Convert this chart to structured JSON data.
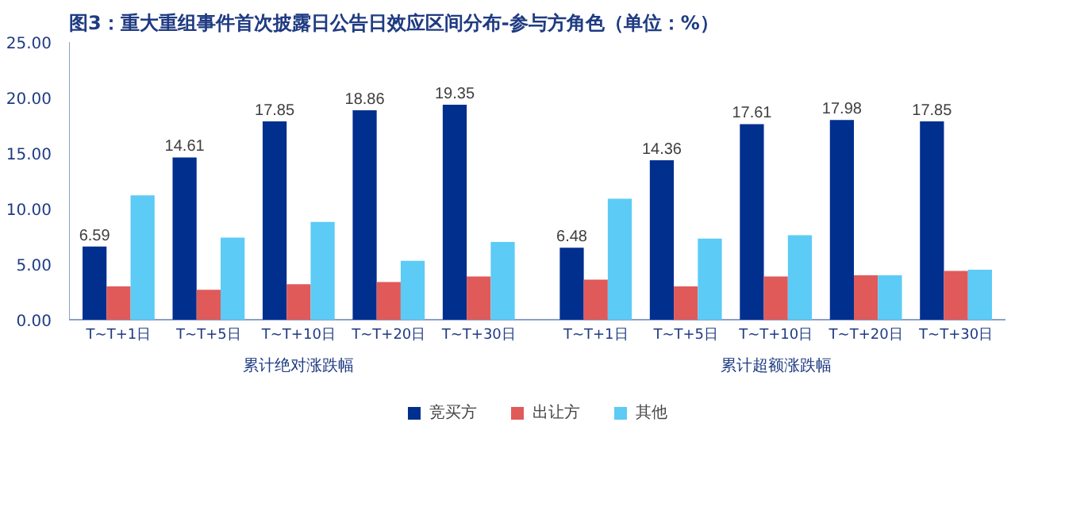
{
  "chart_data": {
    "type": "bar",
    "title": "图3：重大重组事件首次披露日公告日效应区间分布-参与方角色（单位：%）",
    "categories": [
      "T~T+1日",
      "T~T+5日",
      "T~T+10日",
      "T~T+20日",
      "T~T+30日",
      "T~T+1日",
      "T~T+5日",
      "T~T+10日",
      "T~T+20日",
      "T~T+30日"
    ],
    "annotations": [
      "累计绝对涨跌幅",
      "累计超额涨跌幅"
    ],
    "series": [
      {
        "name": "竞买方",
        "color": "#002f8e",
        "values": [
          6.59,
          14.61,
          17.85,
          18.86,
          19.35,
          6.48,
          14.36,
          17.61,
          17.98,
          17.85
        ],
        "value_labels": [
          "6.59",
          "14.61",
          "17.85",
          "18.86",
          "19.35",
          "6.48",
          "14.36",
          "17.61",
          "17.98",
          "17.85"
        ]
      },
      {
        "name": "出让方",
        "color": "#e05a5a",
        "values": [
          3.0,
          2.7,
          3.2,
          3.4,
          3.9,
          3.6,
          3.0,
          3.9,
          4.0,
          4.4
        ]
      },
      {
        "name": "其他",
        "color": "#5ccbf5",
        "values": [
          11.2,
          7.4,
          8.8,
          5.3,
          7.0,
          10.9,
          7.3,
          7.6,
          4.0,
          4.5
        ]
      }
    ],
    "ylim": [
      0,
      25
    ],
    "yticks": [
      {
        "value": 0,
        "label": "0.00"
      },
      {
        "value": 5,
        "label": "5.00"
      },
      {
        "value": 10,
        "label": "10.00"
      },
      {
        "value": 15,
        "label": "15.00"
      },
      {
        "value": 20,
        "label": "20.00"
      },
      {
        "value": 25,
        "label": "25.00"
      }
    ],
    "grid": false,
    "legend": "bottom"
  }
}
